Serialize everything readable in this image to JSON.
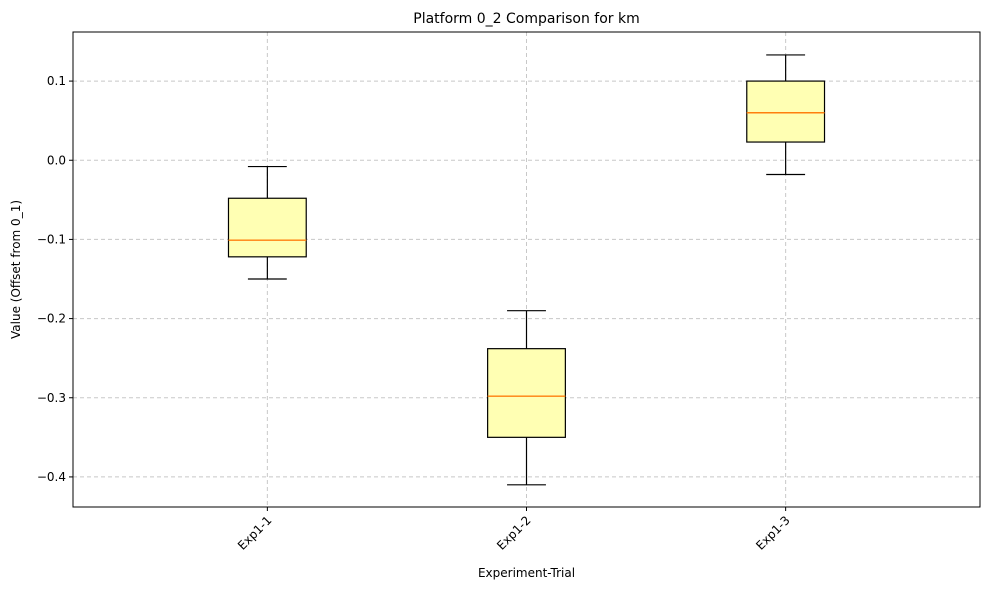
{
  "chart_data": {
    "type": "boxplot",
    "title": "Platform 0_2 Comparison for km",
    "xlabel": "Experiment-Trial",
    "ylabel": "Value (Offset from 0_1)",
    "ylim": [
      -0.438,
      0.162
    ],
    "yticks": [
      0.1,
      0.0,
      -0.1,
      -0.2,
      -0.3,
      -0.4
    ],
    "ytick_labels": [
      "0.1",
      "0.0",
      "−0.1",
      "−0.2",
      "−0.3",
      "−0.4"
    ],
    "grid": true,
    "categories": [
      "Exp1-1",
      "Exp1-2",
      "Exp1-3"
    ],
    "boxes": [
      {
        "label": "Exp1-1",
        "whisker_low": -0.15,
        "q1": -0.122,
        "median": -0.101,
        "q3": -0.048,
        "whisker_high": -0.008
      },
      {
        "label": "Exp1-2",
        "whisker_low": -0.41,
        "q1": -0.35,
        "median": -0.298,
        "q3": -0.238,
        "whisker_high": -0.19
      },
      {
        "label": "Exp1-3",
        "whisker_low": -0.018,
        "q1": 0.023,
        "median": 0.06,
        "q3": 0.1,
        "whisker_high": 0.133
      }
    ],
    "colors": {
      "box_fill": "#ffffb3",
      "box_edge": "#000000",
      "median": "#ff7f0e",
      "grid": "#c8c8c8"
    }
  }
}
